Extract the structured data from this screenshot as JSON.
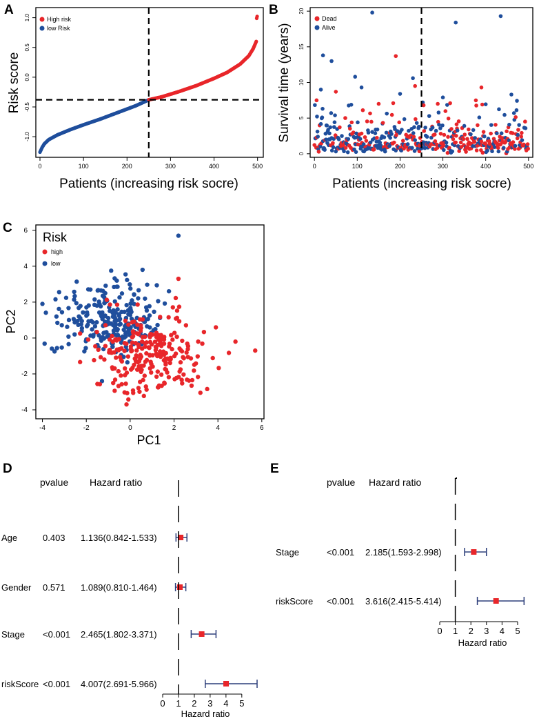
{
  "panel_letters": {
    "A": "A",
    "B": "B",
    "C": "C",
    "D": "D",
    "E": "E"
  },
  "colors": {
    "high": "#e8262a",
    "low": "#1f4e9c",
    "axis": "#000000",
    "ci": "#2c3e7a"
  },
  "chart_data": [
    {
      "id": "A",
      "type": "scatter",
      "xlabel": "Patients (increasing risk socre)",
      "ylabel": "Risk score",
      "xlim": [
        0,
        510
      ],
      "ylim": [
        -1.3,
        1.1
      ],
      "xticks": [
        0,
        100,
        200,
        300,
        400,
        500
      ],
      "yticks": [
        -1.0,
        -0.5,
        0.0,
        0.5,
        1.0
      ],
      "xtick_labels": [
        "0",
        "100",
        "200",
        "300",
        "400",
        "500"
      ],
      "ytick_labels": [
        "-1.0",
        "-0.5",
        "0.0",
        "0.5",
        "1.0"
      ],
      "cutoff_x": 250,
      "cutoff_y": -0.38,
      "legend": {
        "position": "top-left",
        "entries": [
          "High risk",
          "low Risk"
        ]
      },
      "curve_points": [
        [
          0,
          -1.26
        ],
        [
          5,
          -1.18
        ],
        [
          10,
          -1.12
        ],
        [
          20,
          -1.05
        ],
        [
          40,
          -0.97
        ],
        [
          70,
          -0.88
        ],
        [
          100,
          -0.8
        ],
        [
          140,
          -0.7
        ],
        [
          180,
          -0.59
        ],
        [
          220,
          -0.48
        ],
        [
          250,
          -0.38
        ],
        [
          280,
          -0.33
        ],
        [
          320,
          -0.24
        ],
        [
          360,
          -0.14
        ],
        [
          400,
          -0.02
        ],
        [
          430,
          0.08
        ],
        [
          460,
          0.22
        ],
        [
          480,
          0.36
        ],
        [
          490,
          0.48
        ],
        [
          497,
          0.6
        ],
        [
          499,
          0.65
        ]
      ],
      "outliers": [
        [
          498,
          0.99
        ],
        [
          499,
          1.02
        ]
      ]
    },
    {
      "id": "B",
      "type": "scatter",
      "xlabel": "Patients (increasing risk socre)",
      "ylabel": "Survival time (years)",
      "xlim": [
        -10,
        510
      ],
      "ylim": [
        -0.5,
        20.5
      ],
      "xticks": [
        0,
        100,
        200,
        300,
        400,
        500
      ],
      "yticks": [
        0,
        5,
        10,
        15,
        20
      ],
      "xtick_labels": [
        "0",
        "100",
        "200",
        "300",
        "400",
        "500"
      ],
      "ytick_labels": [
        "0",
        "5",
        "10",
        "15",
        "20"
      ],
      "cutoff_x": 250,
      "legend": {
        "position": "top-left",
        "entries": [
          "Dead",
          "Alive"
        ]
      },
      "n_points": 500,
      "highlight_points": {
        "Alive": [
          [
            135,
            19.8
          ],
          [
            435,
            19.3
          ],
          [
            330,
            18.4
          ],
          [
            20,
            13.8
          ],
          [
            40,
            13.0
          ],
          [
            95,
            10.8
          ],
          [
            230,
            10.6
          ],
          [
            15,
            9.0
          ],
          [
            110,
            9.3
          ],
          [
            200,
            8.4
          ],
          [
            460,
            8.3
          ],
          [
            300,
            7.9
          ]
        ],
        "Dead": [
          [
            190,
            13.7
          ],
          [
            50,
            8.7
          ],
          [
            390,
            9.3
          ],
          [
            235,
            9.5
          ],
          [
            255,
            6.8
          ],
          [
            150,
            7.0
          ],
          [
            5,
            7.5
          ]
        ]
      }
    },
    {
      "id": "C",
      "type": "scatter",
      "xlabel": "PC1",
      "ylabel": "PC2",
      "xlim": [
        -4.3,
        6.1
      ],
      "ylim": [
        -4.5,
        6.3
      ],
      "xticks": [
        -4,
        -2,
        0,
        2,
        4,
        6
      ],
      "yticks": [
        -4,
        -2,
        0,
        2,
        4,
        6
      ],
      "xtick_labels": [
        "-4",
        "-2",
        "0",
        "2",
        "4",
        "6"
      ],
      "ytick_labels": [
        "-4",
        "-2",
        "0",
        "2",
        "4",
        "6"
      ],
      "legend": {
        "title": "Risk",
        "position": "top-left",
        "entries": [
          "high",
          "low"
        ]
      },
      "clusters": [
        {
          "name": "low",
          "n": 250,
          "center": [
            -0.9,
            0.9
          ],
          "spread": [
            1.1,
            1.05
          ]
        },
        {
          "name": "high",
          "n": 250,
          "center": [
            0.9,
            -0.9
          ],
          "spread": [
            1.2,
            1.1
          ]
        }
      ],
      "extra_points": {
        "low": [
          [
            2.2,
            5.7
          ],
          [
            -4.0,
            1.9
          ]
        ],
        "high": [
          [
            5.7,
            -0.7
          ],
          [
            4.8,
            -0.2
          ],
          [
            2.2,
            3.3
          ]
        ]
      }
    },
    {
      "id": "D",
      "type": "forest",
      "col_pvalue": "pvalue",
      "col_hr": "Hazard ratio",
      "xlabel": "Hazard ratio",
      "xlim": [
        0,
        5.4
      ],
      "xticks": [
        0,
        1,
        2,
        3,
        4,
        5
      ],
      "xtick_labels": [
        "0",
        "1",
        "2",
        "3",
        "4",
        "5"
      ],
      "reference": 1,
      "rows": [
        {
          "label": "Age",
          "pvalue": "0.403",
          "hr_text": "1.136(0.842-1.533)",
          "hr": 1.136,
          "lo": 0.842,
          "hi": 1.533
        },
        {
          "label": "Gender",
          "pvalue": "0.571",
          "hr_text": "1.089(0.810-1.464)",
          "hr": 1.089,
          "lo": 0.81,
          "hi": 1.464
        },
        {
          "label": "Stage",
          "pvalue": "<0.001",
          "hr_text": "2.465(1.802-3.371)",
          "hr": 2.465,
          "lo": 1.802,
          "hi": 3.371
        },
        {
          "label": "riskScore",
          "pvalue": "<0.001",
          "hr_text": "4.007(2.691-5.966)",
          "hr": 4.007,
          "lo": 2.691,
          "hi": 5.966
        }
      ]
    },
    {
      "id": "E",
      "type": "forest",
      "col_pvalue": "pvalue",
      "col_hr": "Hazard ratio",
      "xlabel": "Hazard ratio",
      "xlim": [
        0,
        5.4
      ],
      "xticks": [
        0,
        1,
        2,
        3,
        4,
        5
      ],
      "xtick_labels": [
        "0",
        "1",
        "2",
        "3",
        "4",
        "5"
      ],
      "reference": 1,
      "rows": [
        {
          "label": "Stage",
          "pvalue": "<0.001",
          "hr_text": "2.185(1.593-2.998)",
          "hr": 2.185,
          "lo": 1.593,
          "hi": 2.998
        },
        {
          "label": "riskScore",
          "pvalue": "<0.001",
          "hr_text": "3.616(2.415-5.414)",
          "hr": 3.616,
          "lo": 2.415,
          "hi": 5.414
        }
      ]
    }
  ]
}
